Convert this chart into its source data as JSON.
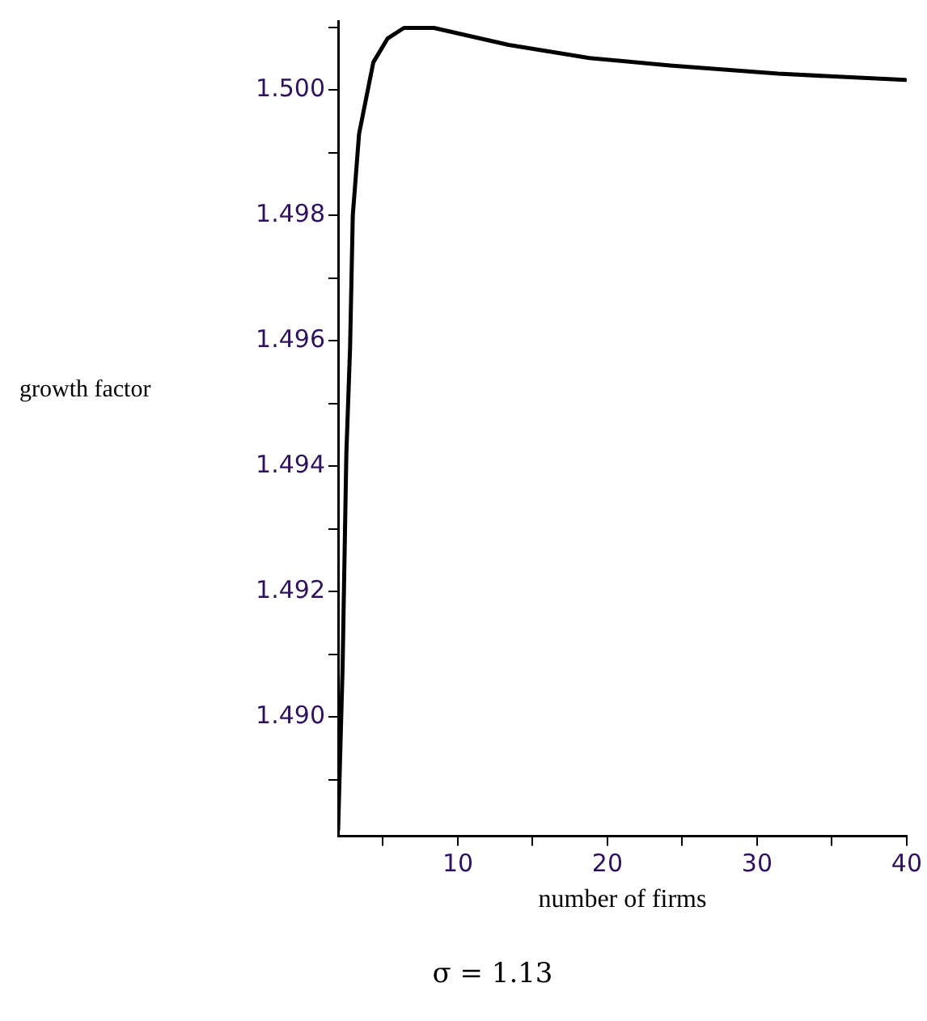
{
  "chart_data": {
    "type": "line",
    "xlabel": "number of firms",
    "ylabel": "growth factor",
    "annotations": [
      "σ = 1.13"
    ],
    "series": [
      {
        "color": "#000000",
        "x": [
          2.0,
          2.3,
          2.55,
          2.8,
          2.98,
          3.4,
          4.35,
          5.3,
          6.4,
          8.4,
          13.4,
          18.8,
          24.2,
          31.4,
          39.9
        ],
        "values": [
          1.4882,
          1.4908,
          1.4942,
          1.4959,
          1.498,
          1.4993,
          1.50044,
          1.50082,
          1.50099,
          1.50099,
          1.50072,
          1.50051,
          1.50039,
          1.50026,
          1.50016
        ]
      }
    ],
    "xlim": [
      2,
      40
    ],
    "xticks": [
      {
        "value": 5,
        "label": null
      },
      10,
      {
        "value": 15,
        "label": null
      },
      20,
      {
        "value": 25,
        "label": null
      },
      30,
      {
        "value": 35,
        "label": null
      },
      40
    ],
    "ylim": [
      1.4881,
      1.5011
    ],
    "yticks": [
      {
        "value": 1.489,
        "label": null
      },
      {
        "value": 1.49,
        "label": "1.490"
      },
      {
        "value": 1.491,
        "label": null
      },
      {
        "value": 1.492,
        "label": "1.492"
      },
      {
        "value": 1.493,
        "label": null
      },
      {
        "value": 1.494,
        "label": "1.494"
      },
      {
        "value": 1.495,
        "label": null
      },
      {
        "value": 1.496,
        "label": "1.496"
      },
      {
        "value": 1.497,
        "label": null
      },
      {
        "value": 1.498,
        "label": "1.498"
      },
      {
        "value": 1.499,
        "label": null
      },
      {
        "value": 1.5,
        "label": "1.500"
      },
      {
        "value": 1.501,
        "label": null
      }
    ],
    "grid": false,
    "legend": false,
    "marker": "none",
    "line_style": "solid"
  }
}
